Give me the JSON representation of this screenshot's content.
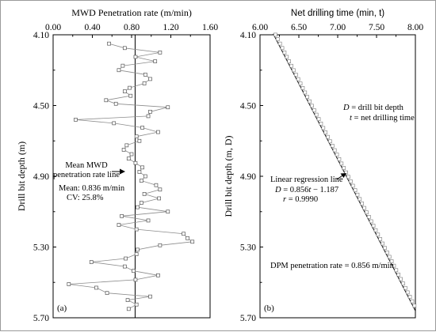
{
  "chart_data": [
    {
      "panel": "a",
      "type": "line",
      "panel_label": "(a)",
      "xlabel": "MWD Penetration rate (m/min)",
      "ylabel": "Drill bit depth (m)",
      "xlim": [
        0.0,
        1.6
      ],
      "ylim": [
        5.7,
        4.1
      ],
      "x_ticks": [
        0.0,
        0.4,
        0.8,
        1.2,
        1.6
      ],
      "x_tick_labels": [
        "0.00",
        "0.40",
        "0.80",
        "1.20",
        "1.60"
      ],
      "y_ticks": [
        4.1,
        4.5,
        4.9,
        5.3,
        5.7
      ],
      "y_tick_labels": [
        "4.10",
        "4.50",
        "4.90",
        "5.30",
        "5.70"
      ],
      "mean_line_x": 0.836,
      "series": [
        {
          "marker": "open-square",
          "points": [
            [
              0.57,
              4.15
            ],
            [
              0.73,
              4.175
            ],
            [
              1.09,
              4.2
            ],
            [
              0.84,
              4.225
            ],
            [
              1.04,
              4.25
            ],
            [
              0.71,
              4.275
            ],
            [
              0.67,
              4.3
            ],
            [
              0.94,
              4.325
            ],
            [
              0.99,
              4.35
            ],
            [
              0.93,
              4.375
            ],
            [
              0.78,
              4.4
            ],
            [
              0.73,
              4.42
            ],
            [
              0.79,
              4.445
            ],
            [
              0.54,
              4.47
            ],
            [
              0.64,
              4.49
            ],
            [
              1.17,
              4.51
            ],
            [
              0.99,
              4.535
            ],
            [
              0.97,
              4.56
            ],
            [
              0.23,
              4.58
            ],
            [
              0.62,
              4.6
            ],
            [
              0.91,
              4.625
            ],
            [
              1.07,
              4.65
            ],
            [
              0.85,
              4.675
            ],
            [
              0.88,
              4.7
            ],
            [
              0.75,
              4.725
            ],
            [
              0.72,
              4.75
            ],
            [
              0.8,
              4.775
            ],
            [
              0.77,
              4.8
            ],
            [
              0.84,
              4.825
            ],
            [
              0.91,
              4.85
            ],
            [
              0.88,
              4.875
            ],
            [
              0.94,
              4.9
            ],
            [
              0.9,
              4.925
            ],
            [
              1.05,
              4.95
            ],
            [
              1.09,
              4.975
            ],
            [
              0.93,
              5.0
            ],
            [
              1.08,
              5.025
            ],
            [
              0.9,
              5.05
            ],
            [
              0.86,
              5.075
            ],
            [
              1.17,
              5.1
            ],
            [
              0.7,
              5.125
            ],
            [
              0.97,
              5.15
            ],
            [
              0.67,
              5.175
            ],
            [
              0.85,
              5.2
            ],
            [
              1.33,
              5.225
            ],
            [
              1.37,
              5.25
            ],
            [
              1.42,
              5.27
            ],
            [
              1.09,
              5.29
            ],
            [
              0.86,
              5.315
            ],
            [
              0.85,
              5.34
            ],
            [
              0.74,
              5.365
            ],
            [
              0.39,
              5.385
            ],
            [
              0.73,
              5.41
            ],
            [
              0.82,
              5.435
            ],
            [
              1.07,
              5.46
            ],
            [
              0.84,
              5.485
            ],
            [
              0.16,
              5.51
            ],
            [
              0.44,
              5.53
            ],
            [
              0.55,
              5.56
            ],
            [
              0.99,
              5.58
            ],
            [
              0.76,
              5.6
            ],
            [
              0.85,
              5.625
            ],
            [
              0.77,
              5.65
            ]
          ]
        }
      ],
      "annotations": {
        "mean_line_label_1": "Mean MWD",
        "mean_line_label_2": "penetration rate line",
        "mean_text": "Mean: 0.836 m/min",
        "cv_text": "CV: 25.8%"
      }
    },
    {
      "panel": "b",
      "type": "scatter",
      "panel_label": "(b)",
      "xlabel": "Net drilling time (min, t)",
      "ylabel": "Drill bit depth (m, D)",
      "xlim": [
        6.0,
        8.0
      ],
      "ylim": [
        5.7,
        4.1
      ],
      "x_ticks": [
        6.0,
        6.5,
        7.0,
        7.5,
        8.0
      ],
      "x_tick_labels": [
        "6.00",
        "6.50",
        "7.00",
        "7.50",
        "8.00"
      ],
      "y_ticks": [
        4.1,
        4.5,
        4.9,
        5.3,
        5.7
      ],
      "y_tick_labels": [
        "4.10",
        "4.50",
        "4.90",
        "5.30",
        "5.70"
      ],
      "regression": {
        "slope": 0.856,
        "intercept": -1.187,
        "r": 0.999
      },
      "data_range": {
        "t_start": 6.18,
        "t_end": 7.97,
        "count": 62
      },
      "annotations": {
        "legend_D_symbol": "D",
        "legend_D_text": " = drill bit depth",
        "legend_t_symbol": "t",
        "legend_t_text": " = net drilling time",
        "regression_label": "Linear regression line",
        "equation_D": "D",
        "equation_mid": " = 0.856",
        "equation_t": "t",
        "equation_end": " − 1.187",
        "r_symbol": "r",
        "r_text": " = 0.9990",
        "dpm_text": "DPM penetration rate = 0.856 m/min"
      }
    }
  ]
}
